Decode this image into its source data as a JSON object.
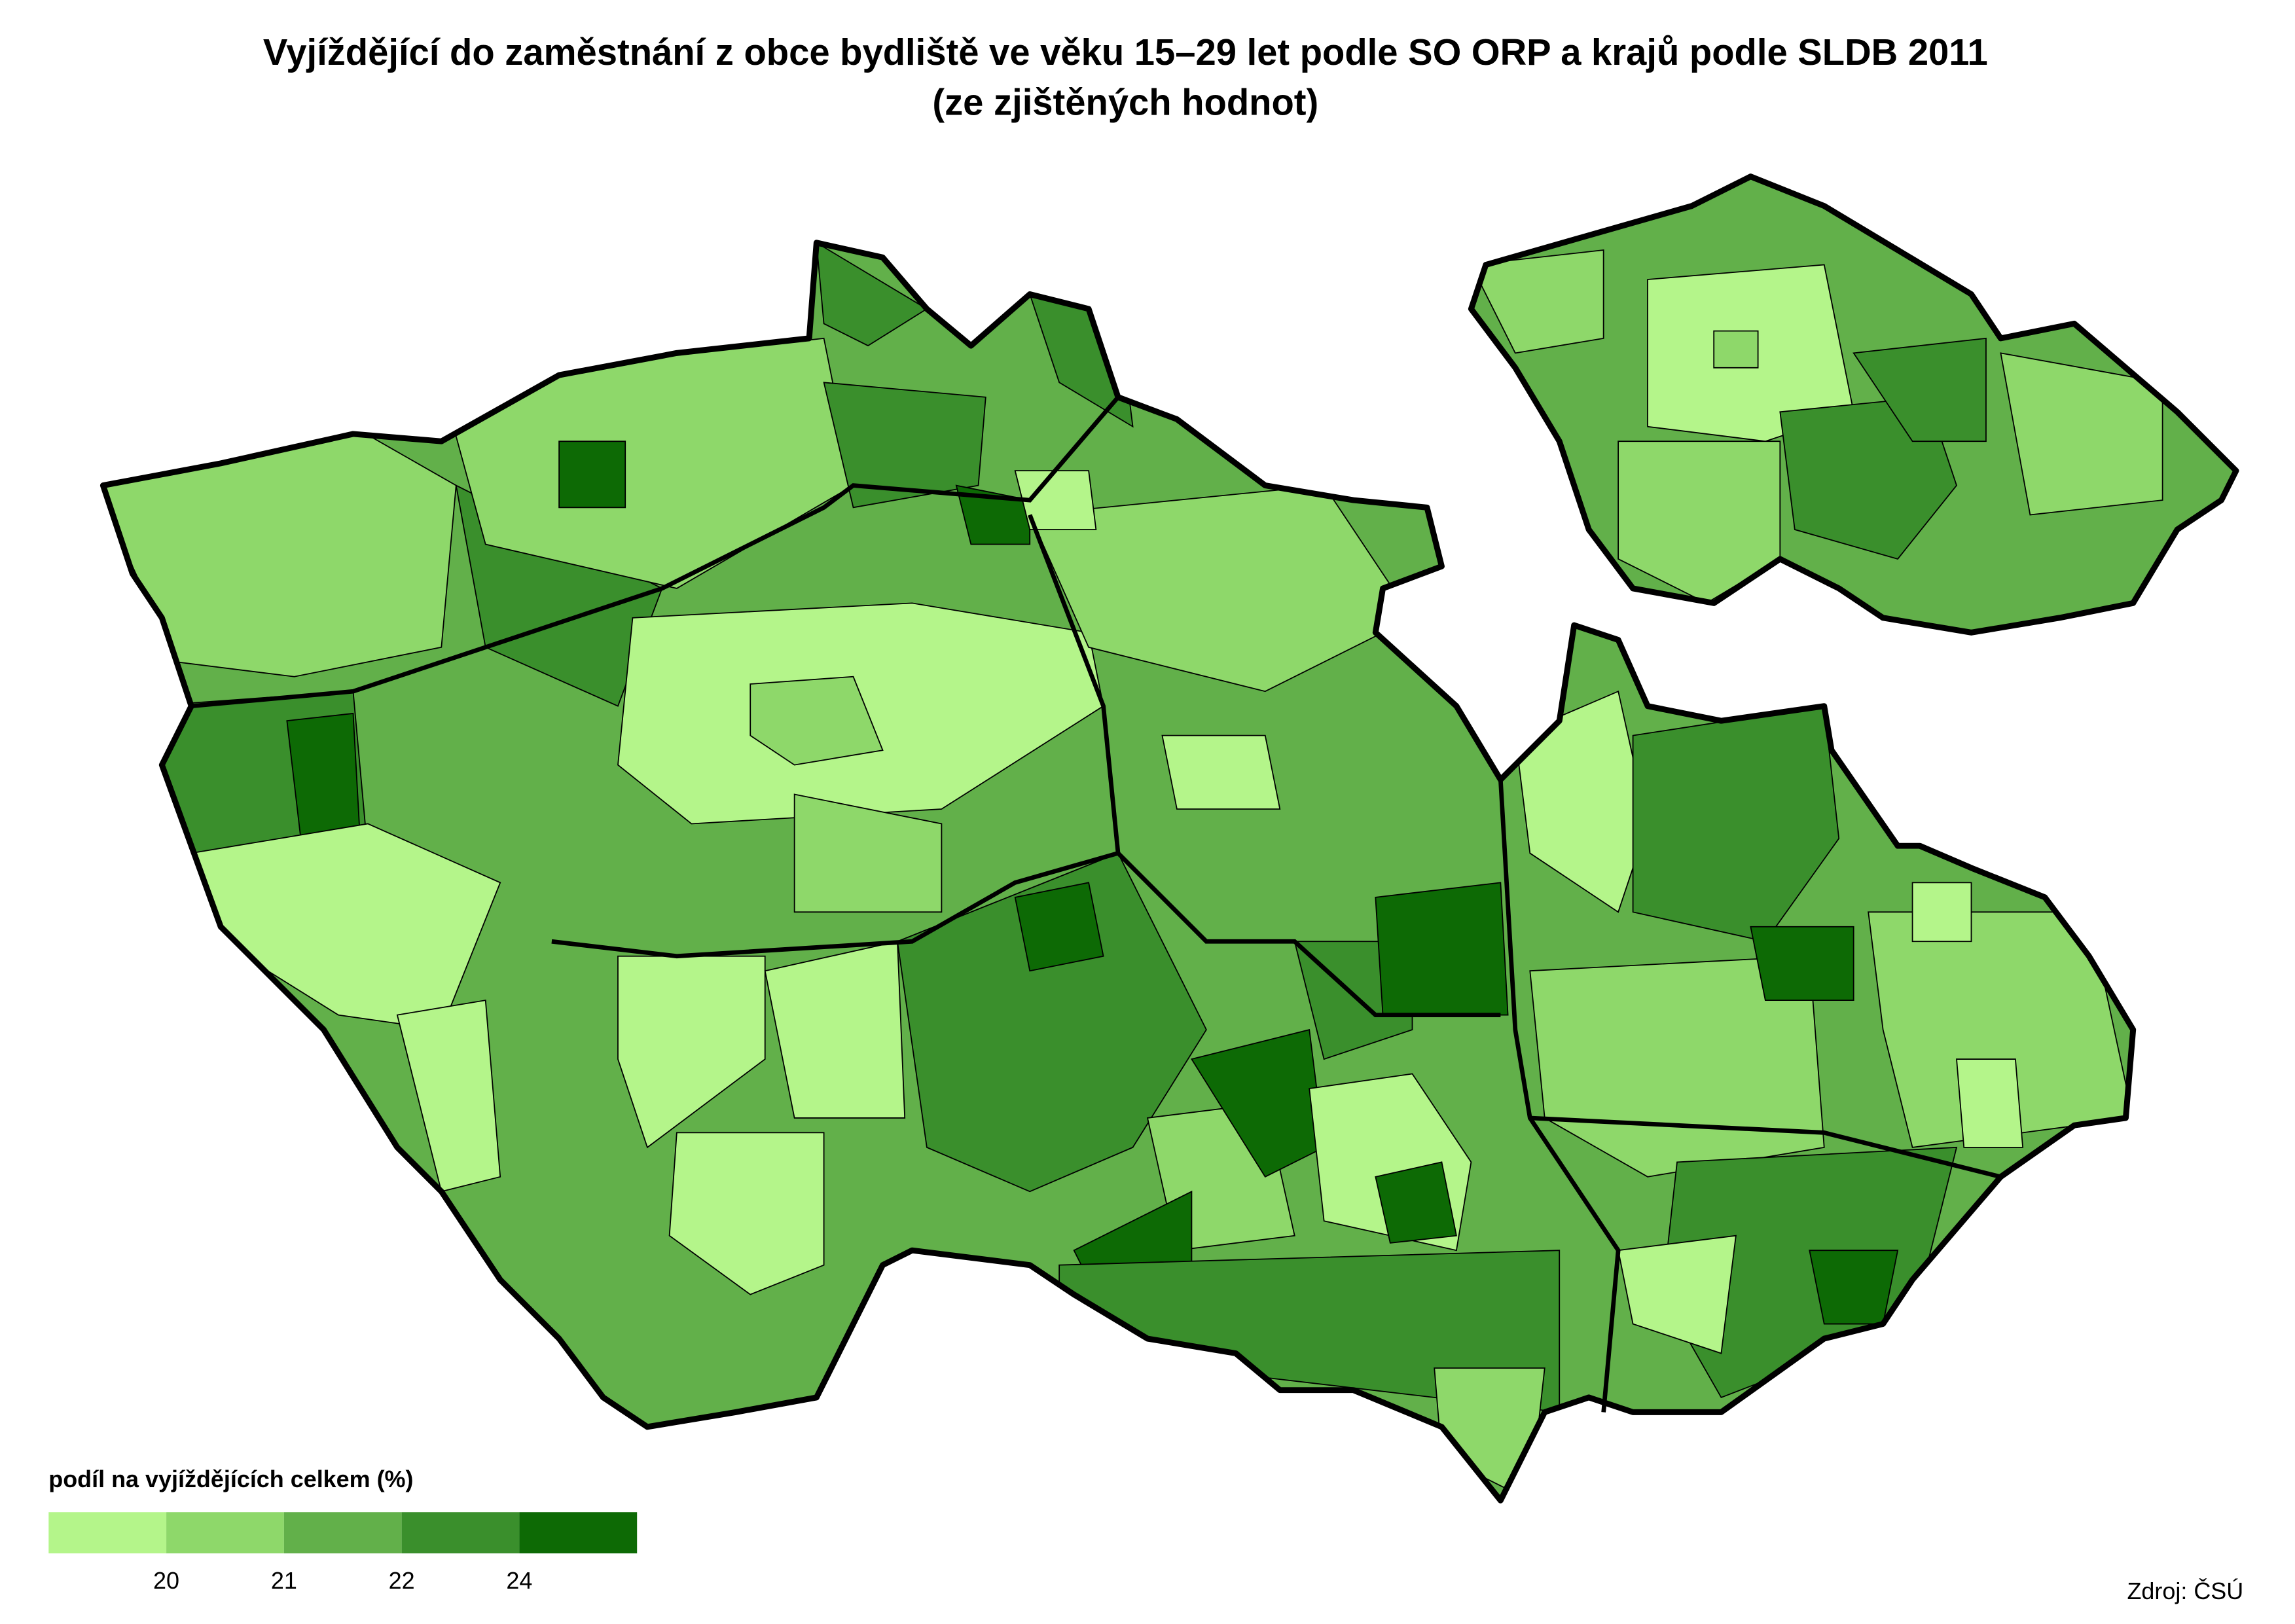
{
  "title": "Vyjíždějící do zaměstnání z obce bydliště ve věku 15–29 let podle SO ORP a krajů podle SLDB 2011",
  "subtitle": "(ze zjištěných hodnot)",
  "legend": {
    "title": "podíl na vyjíždějících celkem (%)",
    "colors": [
      "#b4f58a",
      "#8ed86a",
      "#62b04a",
      "#3a8f2c",
      "#0d6a05"
    ],
    "ticks": [
      20,
      21,
      22,
      24
    ]
  },
  "source": "Zdroj: ČSÚ"
}
